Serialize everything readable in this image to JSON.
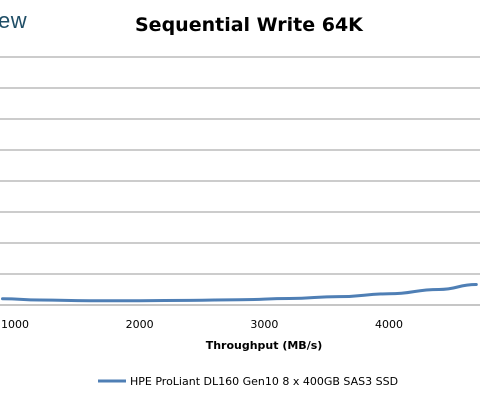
{
  "logo_fragment": "ew",
  "chart_data": {
    "type": "line",
    "title": "Sequential Write 64K",
    "xlabel": "Throughput (MB/s)",
    "ylabel": "",
    "x_ticks": [
      1000,
      2000,
      3000,
      4000
    ],
    "grid": true,
    "legend_position": "bottom",
    "series": [
      {
        "name": "HPE ProLiant DL160 Gen10 8 x 400GB SAS3 SSD",
        "color": "#4f7fb5",
        "points": [
          [
            900,
            0.2
          ],
          [
            1200,
            0.16
          ],
          [
            1600,
            0.14
          ],
          [
            2000,
            0.14
          ],
          [
            2400,
            0.15
          ],
          [
            2800,
            0.17
          ],
          [
            3200,
            0.21
          ],
          [
            3600,
            0.27
          ],
          [
            4000,
            0.36
          ],
          [
            4400,
            0.5
          ],
          [
            4700,
            0.66
          ]
        ]
      }
    ]
  }
}
